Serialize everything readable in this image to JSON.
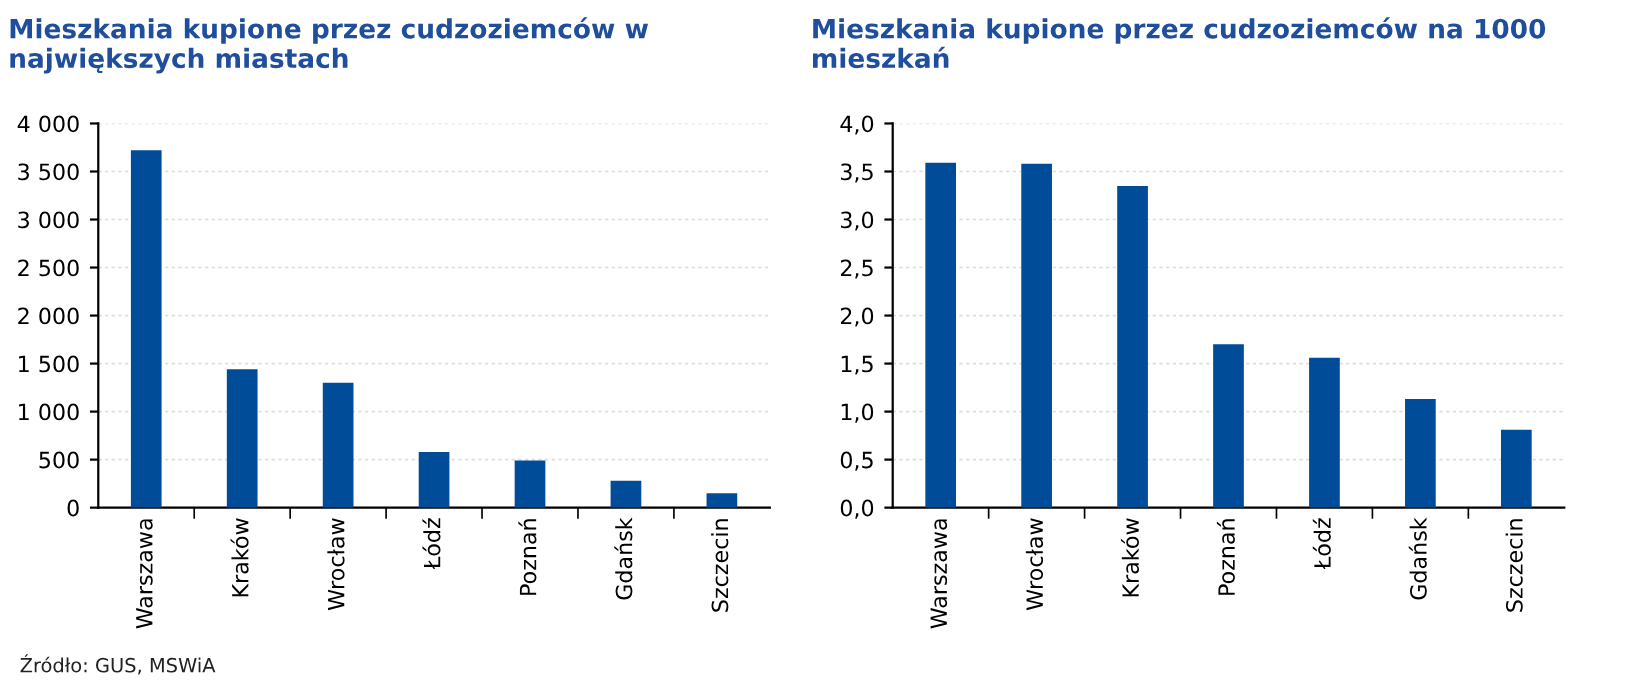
{
  "chart_data": [
    {
      "type": "bar",
      "title": "Mieszkania kupione przez cudzoziemców w największych miastach",
      "categories": [
        "Warszawa",
        "Kraków",
        "Wrocław",
        "Łódź",
        "Poznań",
        "Gdańsk",
        "Szczecin"
      ],
      "values": [
        3720,
        1440,
        1300,
        580,
        490,
        280,
        150
      ],
      "color": "#004c99",
      "ylim": [
        0,
        4000
      ],
      "yticks": [
        0,
        500,
        {
          "value": 1000,
          "label": "1 000"
        },
        {
          "value": 1500,
          "label": "1 500"
        },
        {
          "value": 2000,
          "label": "2 000"
        },
        {
          "value": 2500,
          "label": "2 500"
        },
        {
          "value": 3000,
          "label": "3 000"
        },
        {
          "value": 3500,
          "label": "3 500"
        },
        {
          "value": 4000,
          "label": "4 000"
        }
      ],
      "grid": "y",
      "annotations": [
        "Źródło: GUS, MSWiA"
      ]
    },
    {
      "type": "bar",
      "title": "Mieszkania kupione przez cudzoziemców na 1000 mieszkań",
      "categories": [
        "Warszawa",
        "Wrocław",
        "Kraków",
        "Poznań",
        "Łódź",
        "Gdańsk",
        "Szczecin"
      ],
      "values": [
        3.59,
        3.58,
        3.35,
        1.7,
        1.56,
        1.13,
        0.81
      ],
      "color": "#004c99",
      "ylim": [
        0,
        4
      ],
      "yticks": [
        {
          "value": 0,
          "label": "0,0"
        },
        {
          "value": 0.5,
          "label": "0,5"
        },
        {
          "value": 1,
          "label": "1,0"
        },
        {
          "value": 1.5,
          "label": "1,5"
        },
        {
          "value": 2,
          "label": "2,0"
        },
        {
          "value": 2.5,
          "label": "2,5"
        },
        {
          "value": 3,
          "label": "3,0"
        },
        {
          "value": 3.5,
          "label": "3,5"
        },
        {
          "value": 4,
          "label": "4,0"
        }
      ],
      "grid": "y"
    }
  ]
}
